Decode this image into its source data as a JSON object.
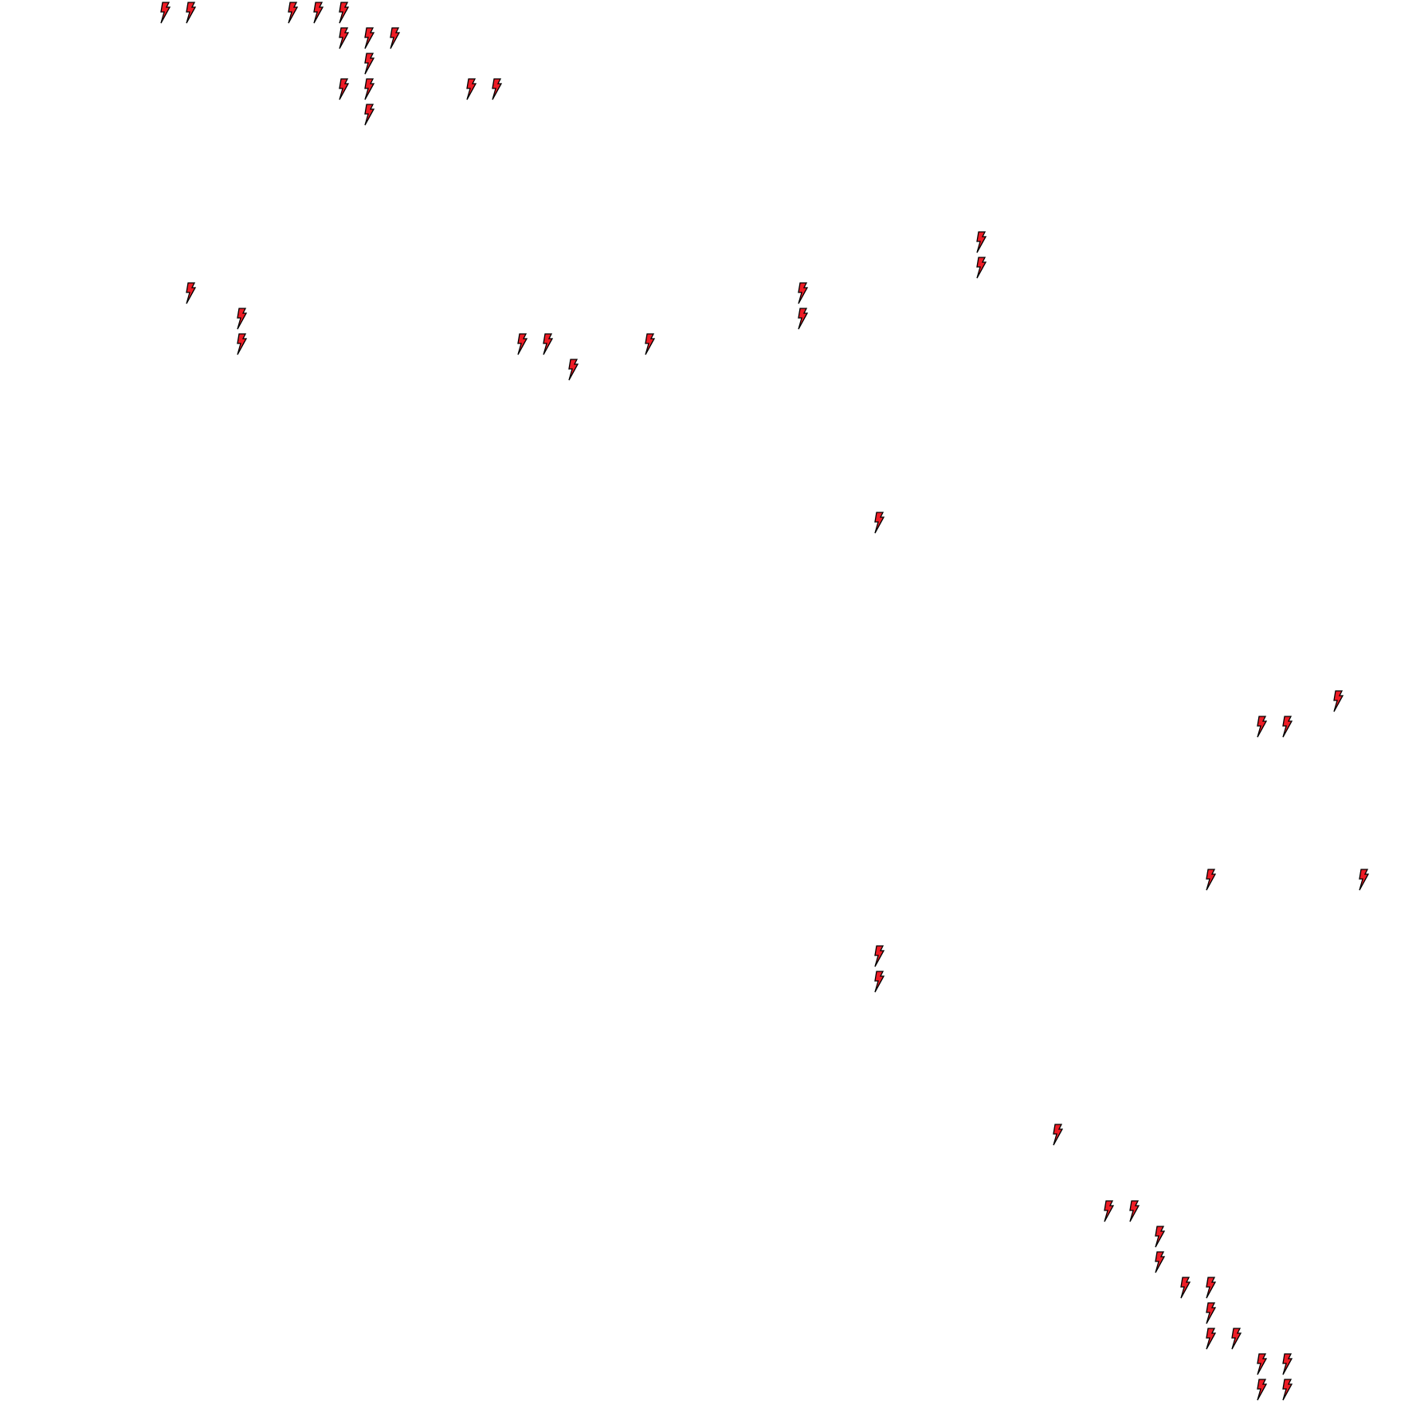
{
  "board": {
    "grid_columns": 56,
    "grid_rows": 56,
    "icon": "lightning-bolt-icon",
    "icon_fill": "#ee1c25",
    "icon_stroke": "#000000",
    "background": "#ffffff",
    "cells": [
      [
        0,
        6
      ],
      [
        0,
        7
      ],
      [
        0,
        11
      ],
      [
        0,
        12
      ],
      [
        0,
        13
      ],
      [
        1,
        13
      ],
      [
        1,
        14
      ],
      [
        1,
        15
      ],
      [
        2,
        14
      ],
      [
        3,
        13
      ],
      [
        3,
        14
      ],
      [
        3,
        18
      ],
      [
        3,
        19
      ],
      [
        4,
        14
      ],
      [
        9,
        38
      ],
      [
        10,
        38
      ],
      [
        11,
        7
      ],
      [
        11,
        31
      ],
      [
        12,
        9
      ],
      [
        12,
        31
      ],
      [
        13,
        9
      ],
      [
        13,
        20
      ],
      [
        13,
        21
      ],
      [
        13,
        25
      ],
      [
        14,
        22
      ],
      [
        20,
        34
      ],
      [
        27,
        52
      ],
      [
        28,
        49
      ],
      [
        28,
        50
      ],
      [
        34,
        47
      ],
      [
        34,
        53
      ],
      [
        37,
        34
      ],
      [
        38,
        34
      ],
      [
        44,
        41
      ],
      [
        47,
        43
      ],
      [
        47,
        44
      ],
      [
        48,
        45
      ],
      [
        49,
        45
      ],
      [
        50,
        46
      ],
      [
        50,
        47
      ],
      [
        51,
        47
      ],
      [
        52,
        47
      ],
      [
        52,
        48
      ],
      [
        53,
        49
      ],
      [
        53,
        50
      ],
      [
        54,
        49
      ],
      [
        54,
        50
      ]
    ]
  }
}
